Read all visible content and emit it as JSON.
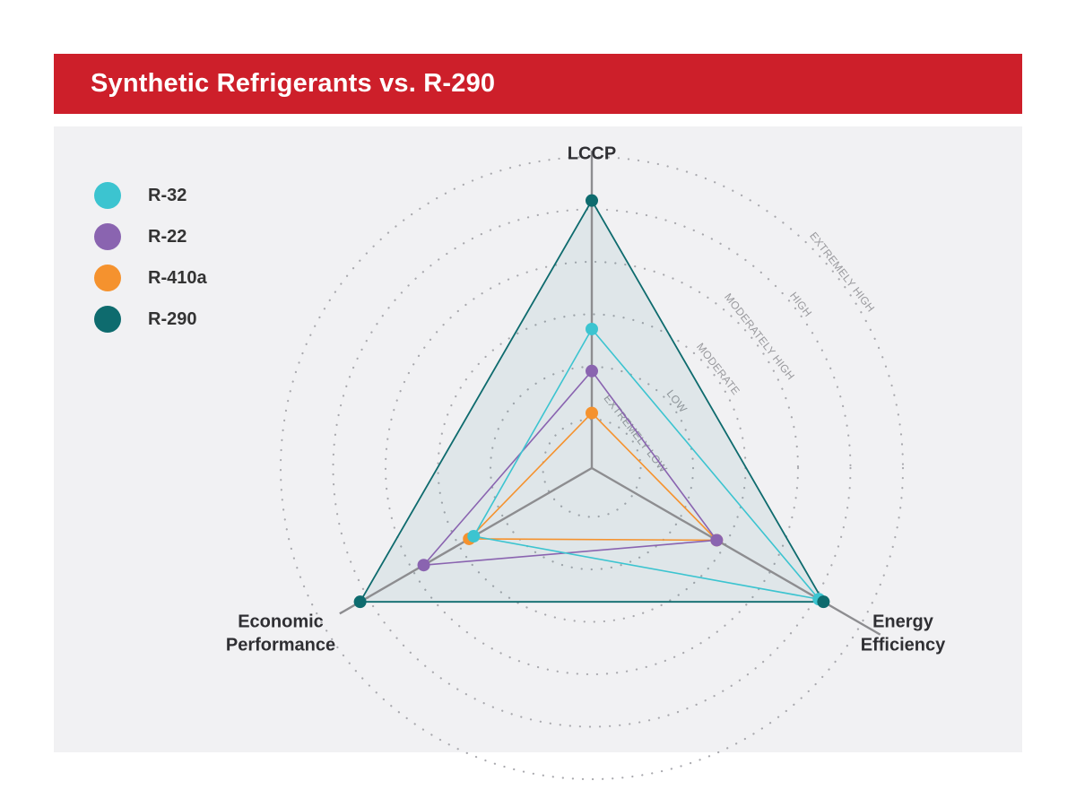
{
  "header": {
    "title": "Synthetic Refrigerants vs. R-290",
    "background_color": "#cd1f2a"
  },
  "chart_data": {
    "type": "radar",
    "title": "Synthetic Refrigerants vs. R-290",
    "axes": [
      {
        "key": "lccp",
        "label_lines": [
          "LCCP"
        ]
      },
      {
        "key": "energy",
        "label_lines": [
          "Energy",
          "Efficiency"
        ]
      },
      {
        "key": "economic",
        "label_lines": [
          "Economic",
          "Performance"
        ]
      }
    ],
    "scale_levels": [
      "EXTREMELY LOW",
      "LOW",
      "MODERATE",
      "MODERATELY HIGH",
      "HIGH",
      "EXTREMELY HIGH"
    ],
    "r_max": 6,
    "legend_placement": "top-left",
    "series": [
      {
        "name": "R-290",
        "color": "#0e6b6e",
        "values": [
          5.1,
          5.1,
          5.1
        ],
        "filled": true
      },
      {
        "name": "R-32",
        "color": "#3cc4d0",
        "values": [
          2.65,
          5.0,
          2.6
        ]
      },
      {
        "name": "R-22",
        "color": "#8a64b0",
        "values": [
          1.85,
          2.75,
          3.7
        ]
      },
      {
        "name": "R-410a",
        "color": "#f5922e",
        "values": [
          1.05,
          2.75,
          2.7
        ]
      }
    ],
    "legend_order": [
      "R-32",
      "R-22",
      "R-410a",
      "R-290"
    ]
  }
}
